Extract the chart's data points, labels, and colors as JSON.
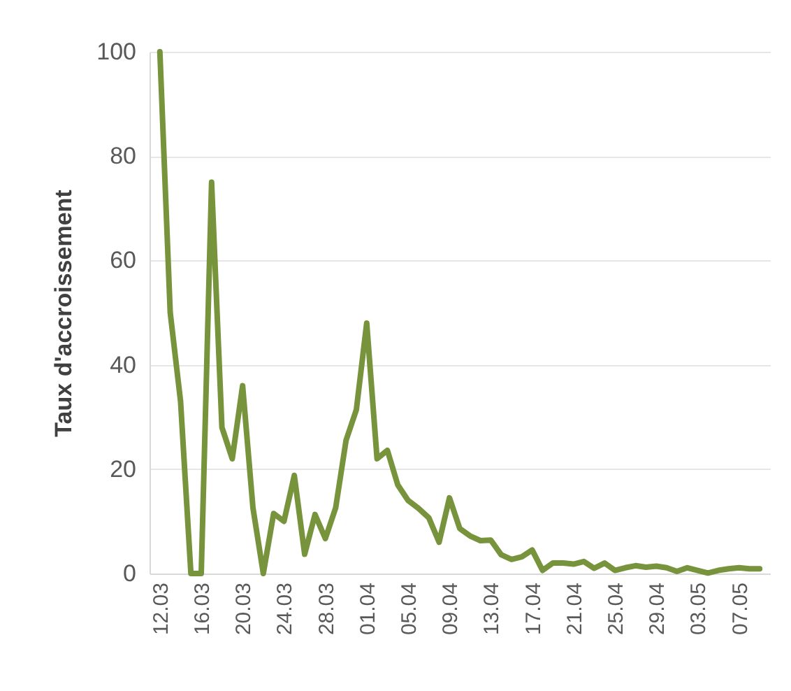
{
  "chart_data": {
    "type": "line",
    "ylabel": "Taux d'accroissement",
    "categories": [
      "12.03",
      null,
      null,
      null,
      "16.03",
      null,
      null,
      null,
      "20.03",
      null,
      null,
      null,
      "24.03",
      null,
      null,
      null,
      "28.03",
      null,
      null,
      null,
      "01.04",
      null,
      null,
      null,
      "05.04",
      null,
      null,
      null,
      "09.04",
      null,
      null,
      null,
      "13.04",
      null,
      null,
      null,
      "17.04",
      null,
      null,
      null,
      "21.04",
      null,
      null,
      null,
      "25.04",
      null,
      null,
      null,
      "29.04",
      null,
      null,
      null,
      "03.05",
      null,
      null,
      null,
      "07.05",
      null,
      null
    ],
    "series": [
      {
        "color": "#77933c",
        "values": [
          100,
          50,
          33,
          0,
          0,
          75,
          28,
          22,
          36,
          12.6,
          0,
          11.5,
          10,
          18.8,
          3.7,
          11.3,
          6.7,
          12.6,
          25.5,
          31.4,
          48,
          22,
          23.6,
          17,
          14,
          12.5,
          10.7,
          6,
          14.5,
          8.6,
          7.2,
          6.3,
          6.4,
          3.6,
          2.7,
          3.2,
          4.5,
          0.6,
          2,
          2,
          1.8,
          2.3,
          1,
          2,
          0.6,
          1.1,
          1.5,
          1.2,
          1.4,
          1.1,
          0.4,
          1.1,
          0.6,
          0.1,
          0.6,
          0.9,
          1.1,
          0.9,
          0.9
        ]
      }
    ],
    "ylim": [
      0,
      100
    ],
    "yticks": [
      0,
      20,
      40,
      60,
      80,
      100
    ],
    "grid": "y",
    "marker": "none",
    "line_style": "solid"
  }
}
